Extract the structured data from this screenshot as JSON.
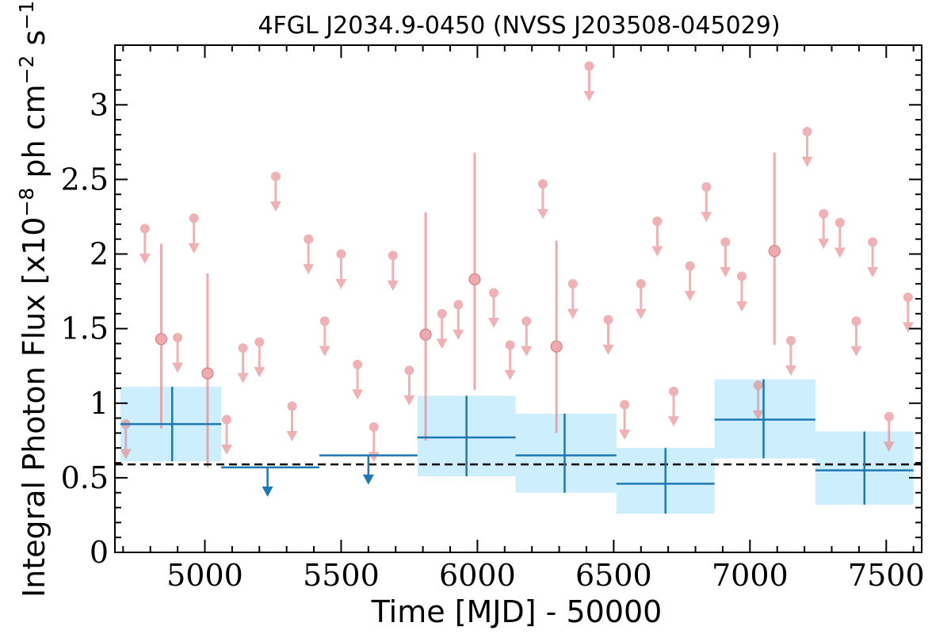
{
  "chart_data": {
    "type": "scatter",
    "title": "4FGL J2034.9-0450 (NVSS J203508-045029)",
    "xlabel": "Time [MJD] - 50000",
    "ylabel_prefix": "Integral Photon Flux [x10",
    "ylabel_exp1": "−8",
    "ylabel_mid": " ph cm",
    "ylabel_exp2": "−2",
    "ylabel_mid2": " s",
    "ylabel_exp3": "−1",
    "ylabel_suffix": "]",
    "xlim": [
      4670,
      7630
    ],
    "ylim": [
      0,
      3.4
    ],
    "x_ticks": [
      5000,
      5500,
      6000,
      6500,
      7000,
      7500
    ],
    "y_ticks": [
      0,
      0.5,
      1,
      1.5,
      2,
      2.5,
      3
    ],
    "y_tick_labels": [
      "0",
      "0.5",
      "1",
      "1.5",
      "2",
      "2.5",
      "3"
    ],
    "average_flux": 0.59,
    "colors": {
      "short_bins": "#e8888c",
      "long_bins": "#1f77b4",
      "long_band": "#cdeefc",
      "average_line": "#000000"
    },
    "long_bins_detections": [
      {
        "x": 4880,
        "x_lo": 4690,
        "x_hi": 5060,
        "y": 0.86,
        "y_lo": 0.61,
        "y_hi": 1.11
      },
      {
        "x": 5960,
        "x_lo": 5780,
        "x_hi": 6140,
        "y": 0.77,
        "y_lo": 0.51,
        "y_hi": 1.05
      },
      {
        "x": 6320,
        "x_lo": 6140,
        "x_hi": 6510,
        "y": 0.65,
        "y_lo": 0.4,
        "y_hi": 0.93
      },
      {
        "x": 6690,
        "x_lo": 6510,
        "x_hi": 6870,
        "y": 0.46,
        "y_lo": 0.26,
        "y_hi": 0.7
      },
      {
        "x": 7050,
        "x_lo": 6870,
        "x_hi": 7240,
        "y": 0.89,
        "y_lo": 0.63,
        "y_hi": 1.16
      },
      {
        "x": 7420,
        "x_lo": 7240,
        "x_hi": 7600,
        "y": 0.55,
        "y_lo": 0.32,
        "y_hi": 0.81
      }
    ],
    "long_bins_upper_limits": [
      {
        "x": 5230,
        "x_lo": 5060,
        "x_hi": 5420,
        "y": 0.57
      },
      {
        "x": 5600,
        "x_lo": 5420,
        "x_hi": 5780,
        "y": 0.65
      }
    ],
    "short_bins_detections": [
      {
        "x": 4840,
        "y": 1.43,
        "y_lo": 0.83,
        "y_hi": 2.07
      },
      {
        "x": 5010,
        "y": 1.2,
        "y_lo": 0.57,
        "y_hi": 1.87
      },
      {
        "x": 5810,
        "y": 1.46,
        "y_lo": 0.75,
        "y_hi": 2.28
      },
      {
        "x": 5990,
        "y": 1.83,
        "y_lo": 1.09,
        "y_hi": 2.68
      },
      {
        "x": 6290,
        "y": 1.38,
        "y_lo": 0.8,
        "y_hi": 2.09
      },
      {
        "x": 7090,
        "y": 2.02,
        "y_lo": 1.39,
        "y_hi": 2.68
      }
    ],
    "short_bins_upper_limits": [
      {
        "x": 4710,
        "y": 0.86
      },
      {
        "x": 4780,
        "y": 2.17
      },
      {
        "x": 4900,
        "y": 1.44
      },
      {
        "x": 4960,
        "y": 2.24
      },
      {
        "x": 5080,
        "y": 0.89
      },
      {
        "x": 5140,
        "y": 1.37
      },
      {
        "x": 5200,
        "y": 1.41
      },
      {
        "x": 5260,
        "y": 2.52
      },
      {
        "x": 5320,
        "y": 0.98
      },
      {
        "x": 5380,
        "y": 2.1
      },
      {
        "x": 5440,
        "y": 1.55
      },
      {
        "x": 5500,
        "y": 2.0
      },
      {
        "x": 5560,
        "y": 1.26
      },
      {
        "x": 5620,
        "y": 0.84
      },
      {
        "x": 5690,
        "y": 1.99
      },
      {
        "x": 5750,
        "y": 1.22
      },
      {
        "x": 5870,
        "y": 1.6
      },
      {
        "x": 5930,
        "y": 1.66
      },
      {
        "x": 6060,
        "y": 1.74
      },
      {
        "x": 6120,
        "y": 1.39
      },
      {
        "x": 6180,
        "y": 1.55
      },
      {
        "x": 6240,
        "y": 2.47
      },
      {
        "x": 6350,
        "y": 1.8
      },
      {
        "x": 6410,
        "y": 3.26
      },
      {
        "x": 6480,
        "y": 1.56
      },
      {
        "x": 6540,
        "y": 0.99
      },
      {
        "x": 6600,
        "y": 1.8
      },
      {
        "x": 6660,
        "y": 2.22
      },
      {
        "x": 6720,
        "y": 1.08
      },
      {
        "x": 6780,
        "y": 1.92
      },
      {
        "x": 6840,
        "y": 2.45
      },
      {
        "x": 6910,
        "y": 2.08
      },
      {
        "x": 6970,
        "y": 1.85
      },
      {
        "x": 7030,
        "y": 1.12
      },
      {
        "x": 7150,
        "y": 1.42
      },
      {
        "x": 7210,
        "y": 2.82
      },
      {
        "x": 7270,
        "y": 2.27
      },
      {
        "x": 7330,
        "y": 2.21
      },
      {
        "x": 7390,
        "y": 1.55
      },
      {
        "x": 7450,
        "y": 2.08
      },
      {
        "x": 7510,
        "y": 0.91
      },
      {
        "x": 7580,
        "y": 1.71
      }
    ]
  }
}
